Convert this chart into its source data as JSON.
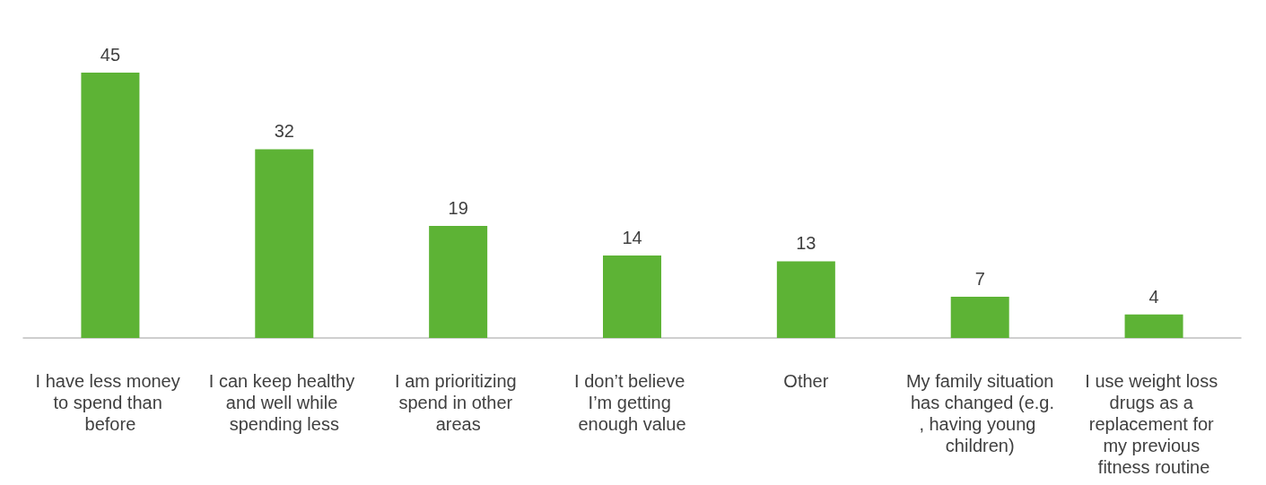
{
  "chart_data": {
    "type": "bar",
    "categories": [
      "I have less money to spend than before",
      "I can keep healthy and well while spending less",
      "I am prioritizing spend in other areas",
      "I don’t believe I’m getting enough value",
      "Other",
      "My family situation has changed (e.g., having young children)",
      "I use weight loss drugs as a replacement for my previous fitness routine"
    ],
    "values": [
      45,
      32,
      19,
      14,
      13,
      7,
      4
    ],
    "color": "#5db335",
    "data_labels": true
  }
}
